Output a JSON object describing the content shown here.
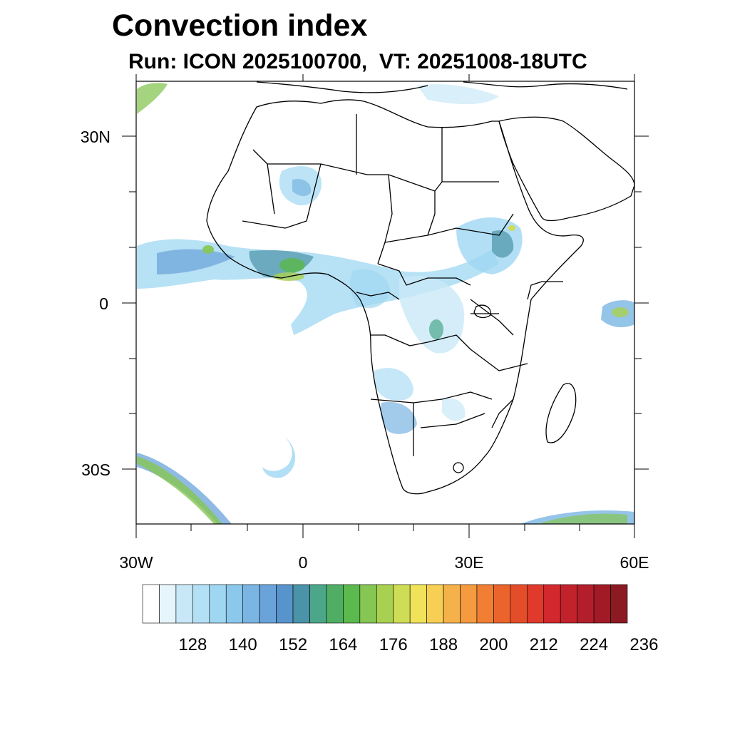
{
  "title": "Convection index",
  "subtitle": "Run: ICON 2025100700,  VT: 20251008-18UTC",
  "axes": {
    "lon_labels": [
      "30W",
      "0",
      "30E",
      "60E"
    ],
    "lat_labels": [
      "30N",
      "0",
      "30S"
    ]
  },
  "colorbar": {
    "colors": [
      "#ffffff",
      "#e6f4fb",
      "#c9e8f7",
      "#b3e0f5",
      "#9fd7f2",
      "#8cc8ec",
      "#7ab5e3",
      "#6aa3d9",
      "#5894cc",
      "#4a93a8",
      "#4ba68a",
      "#4fae64",
      "#5bb94e",
      "#86c653",
      "#a8d151",
      "#cfdc55",
      "#f0e35a",
      "#f7cf54",
      "#f6b24a",
      "#f59a3e",
      "#f07f33",
      "#ea642c",
      "#e44d29",
      "#df3a2b",
      "#d3282d",
      "#c2222c",
      "#b21e2a",
      "#a11b27",
      "#8c1a22"
    ],
    "labels": [
      "128",
      "140",
      "152",
      "164",
      "176",
      "188",
      "200",
      "212",
      "224",
      "236"
    ]
  }
}
